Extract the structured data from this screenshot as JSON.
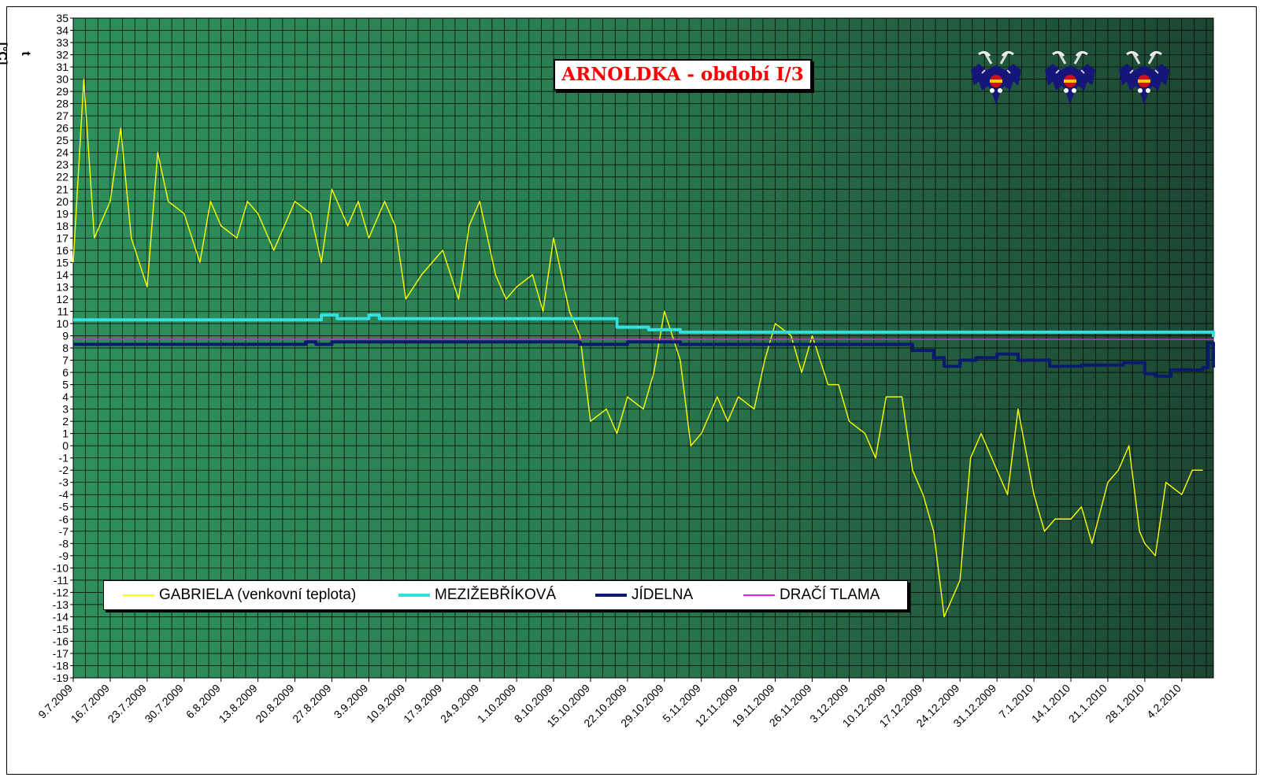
{
  "chart_data": {
    "type": "line",
    "title": "ARNOLDKA - období I/3",
    "ylabel": "t [°C]",
    "xlabel": "",
    "ylim": [
      -19,
      35
    ],
    "ytick_step": 1,
    "grid": true,
    "legend_position": "bottom-left",
    "plot_background": "#2e8b57 fading to #1f4a34",
    "x_date_start": "9.7.2009",
    "x_date_end": "10.2.2010",
    "x_tick_labels": [
      "9.7.2009",
      "16.7.2009",
      "23.7.2009",
      "30.7.2009",
      "6.8.2009",
      "13.8.2009",
      "20.8.2009",
      "27.8.2009",
      "3.9.2009",
      "10.9.2009",
      "17.9.2009",
      "24.9.2009",
      "1.10.2009",
      "8.10.2009",
      "15.10.2009",
      "22.10.2009",
      "29.10.2009",
      "5.11.2009",
      "12.11.2009",
      "19.11.2009",
      "26.11.2009",
      "3.12.2009",
      "10.12.2009",
      "17.12.2009",
      "24.12.2009",
      "31.12.2009",
      "7.1.2010",
      "14.1.2010",
      "21.1.2010",
      "28.1.2010",
      "4.2.2010"
    ],
    "series": [
      {
        "name": "GABRIELA (venkovní teplota)",
        "color": "#ffff00",
        "style": "thin",
        "dates": [
          "9.7.2009",
          "11.7.2009",
          "13.7.2009",
          "16.7.2009",
          "18.7.2009",
          "20.7.2009",
          "23.7.2009",
          "25.7.2009",
          "27.7.2009",
          "30.7.2009",
          "2.8.2009",
          "4.8.2009",
          "6.8.2009",
          "9.8.2009",
          "11.8.2009",
          "13.8.2009",
          "16.8.2009",
          "18.8.2009",
          "20.8.2009",
          "23.8.2009",
          "25.8.2009",
          "27.8.2009",
          "30.8.2009",
          "1.9.2009",
          "3.9.2009",
          "6.9.2009",
          "8.9.2009",
          "10.9.2009",
          "13.9.2009",
          "15.9.2009",
          "17.9.2009",
          "20.9.2009",
          "22.9.2009",
          "24.9.2009",
          "27.9.2009",
          "29.9.2009",
          "1.10.2009",
          "4.10.2009",
          "6.10.2009",
          "8.10.2009",
          "11.10.2009",
          "13.10.2009",
          "15.10.2009",
          "18.10.2009",
          "20.10.2009",
          "22.10.2009",
          "25.10.2009",
          "27.10.2009",
          "29.10.2009",
          "1.11.2009",
          "3.11.2009",
          "5.11.2009",
          "8.11.2009",
          "10.11.2009",
          "12.11.2009",
          "15.11.2009",
          "17.11.2009",
          "19.11.2009",
          "22.11.2009",
          "24.11.2009",
          "26.11.2009",
          "29.11.2009",
          "1.12.2009",
          "3.12.2009",
          "6.12.2009",
          "8.12.2009",
          "10.12.2009",
          "13.12.2009",
          "15.12.2009",
          "17.12.2009",
          "19.12.2009",
          "21.12.2009",
          "24.12.2009",
          "26.12.2009",
          "28.12.2009",
          "31.12.2009",
          "2.1.2010",
          "4.1.2010",
          "7.1.2010",
          "9.1.2010",
          "11.1.2010",
          "14.1.2010",
          "16.1.2010",
          "18.1.2010",
          "21.1.2010",
          "23.1.2010",
          "25.1.2010",
          "27.1.2010",
          "28.1.2010",
          "30.1.2010",
          "1.2.2010",
          "4.2.2010",
          "6.2.2010",
          "8.2.2010"
        ],
        "values": [
          15,
          30,
          17,
          20,
          26,
          17,
          13,
          24,
          20,
          19,
          15,
          20,
          18,
          17,
          20,
          19,
          16,
          18,
          20,
          19,
          15,
          21,
          18,
          20,
          17,
          20,
          18,
          12,
          14,
          15,
          16,
          12,
          18,
          20,
          14,
          12,
          13,
          14,
          11,
          17,
          11,
          9,
          2,
          3,
          1,
          4,
          3,
          6,
          11,
          7,
          0,
          1,
          4,
          2,
          4,
          3,
          7,
          10,
          9,
          6,
          9,
          5,
          5,
          2,
          1,
          -1,
          4,
          4,
          -2,
          -4,
          -7,
          -14,
          -11,
          -1,
          1,
          -2,
          -4,
          3,
          -4,
          -7,
          -6,
          -6,
          -5,
          -8,
          -3,
          -2,
          0,
          -7,
          -8,
          -9,
          -3,
          -4,
          -2,
          -2
        ]
      },
      {
        "name": "MEZIŽEBŘÍKOVÁ",
        "color": "#33e0e0",
        "style": "thick",
        "dates": [
          "9.7.2009",
          "11.7.2009",
          "25.8.2009",
          "28.8.2009",
          "3.9.2009",
          "5.9.2009",
          "13.10.2009",
          "20.10.2009",
          "26.10.2009",
          "1.11.2009",
          "15.12.2009",
          "10.2.2010"
        ],
        "values": [
          10.3,
          10.3,
          10.7,
          10.4,
          10.7,
          10.4,
          10.4,
          9.7,
          9.5,
          9.3,
          9.3,
          8.9
        ]
      },
      {
        "name": "JÍDELNA",
        "color": "#0a1a6e",
        "style": "thick",
        "dates": [
          "9.7.2009",
          "22.8.2009",
          "24.8.2009",
          "27.8.2009",
          "13.10.2009",
          "22.10.2009",
          "1.11.2009",
          "12.12.2009",
          "15.12.2009",
          "19.12.2009",
          "21.12.2009",
          "24.12.2009",
          "27.12.2009",
          "31.12.2009",
          "4.1.2010",
          "10.1.2010",
          "16.1.2010",
          "24.1.2010",
          "28.1.2010",
          "30.1.2010",
          "2.2.2010",
          "8.2.2010",
          "9.2.2010",
          "10.2.2010"
        ],
        "values": [
          8.3,
          8.5,
          8.3,
          8.5,
          8.3,
          8.5,
          8.3,
          8.3,
          7.8,
          7.2,
          6.5,
          7.0,
          7.2,
          7.5,
          7.0,
          6.5,
          6.6,
          6.8,
          5.9,
          5.7,
          6.2,
          6.4,
          8.4,
          6.4
        ]
      },
      {
        "name": "DRAČÍ TLAMA",
        "color": "#e01ee0",
        "style": "thin",
        "dates": [
          "9.7.2009",
          "10.2.2010"
        ],
        "values": [
          8.7,
          8.7
        ]
      }
    ]
  },
  "icon": "bat-icon"
}
